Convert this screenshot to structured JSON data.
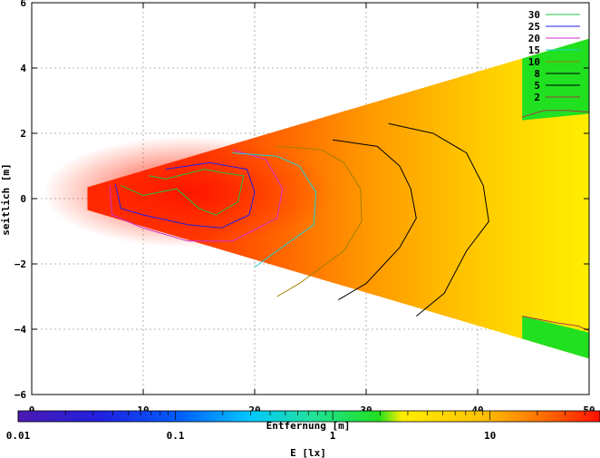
{
  "chart_data": {
    "type": "heatmap",
    "xlabel": "Entfernung [m]",
    "ylabel": "seitlich [m]",
    "xlim": [
      0,
      50
    ],
    "ylim": [
      -6,
      6
    ],
    "x_ticks": [
      "0",
      "10",
      "20",
      "30",
      "40",
      "50"
    ],
    "y_ticks": [
      "6",
      "4",
      "2",
      "0",
      "−2",
      "−4",
      "−6"
    ],
    "grid": true,
    "legend_position": "top-right",
    "contours": [
      {
        "name": "30",
        "color": "#22c040"
      },
      {
        "name": "25",
        "color": "#2020e0"
      },
      {
        "name": "20",
        "color": "#cc30cc"
      },
      {
        "name": "15",
        "color": "#20d0d0"
      },
      {
        "name": "10",
        "color": "#a08000"
      },
      {
        "name": "8",
        "color": "#000000"
      },
      {
        "name": "5",
        "color": "#000000"
      },
      {
        "name": "2",
        "color": "#a04040"
      }
    ],
    "colorbar": {
      "label": "E [lx]",
      "scale": "log",
      "range": [
        0.01,
        50
      ],
      "ticks": [
        "0.01",
        "0.1",
        "1",
        "10"
      ]
    },
    "region": {
      "near_x": 5,
      "near_half_width": 0.35,
      "far_x": 50,
      "far_half_width": 4.9
    }
  }
}
